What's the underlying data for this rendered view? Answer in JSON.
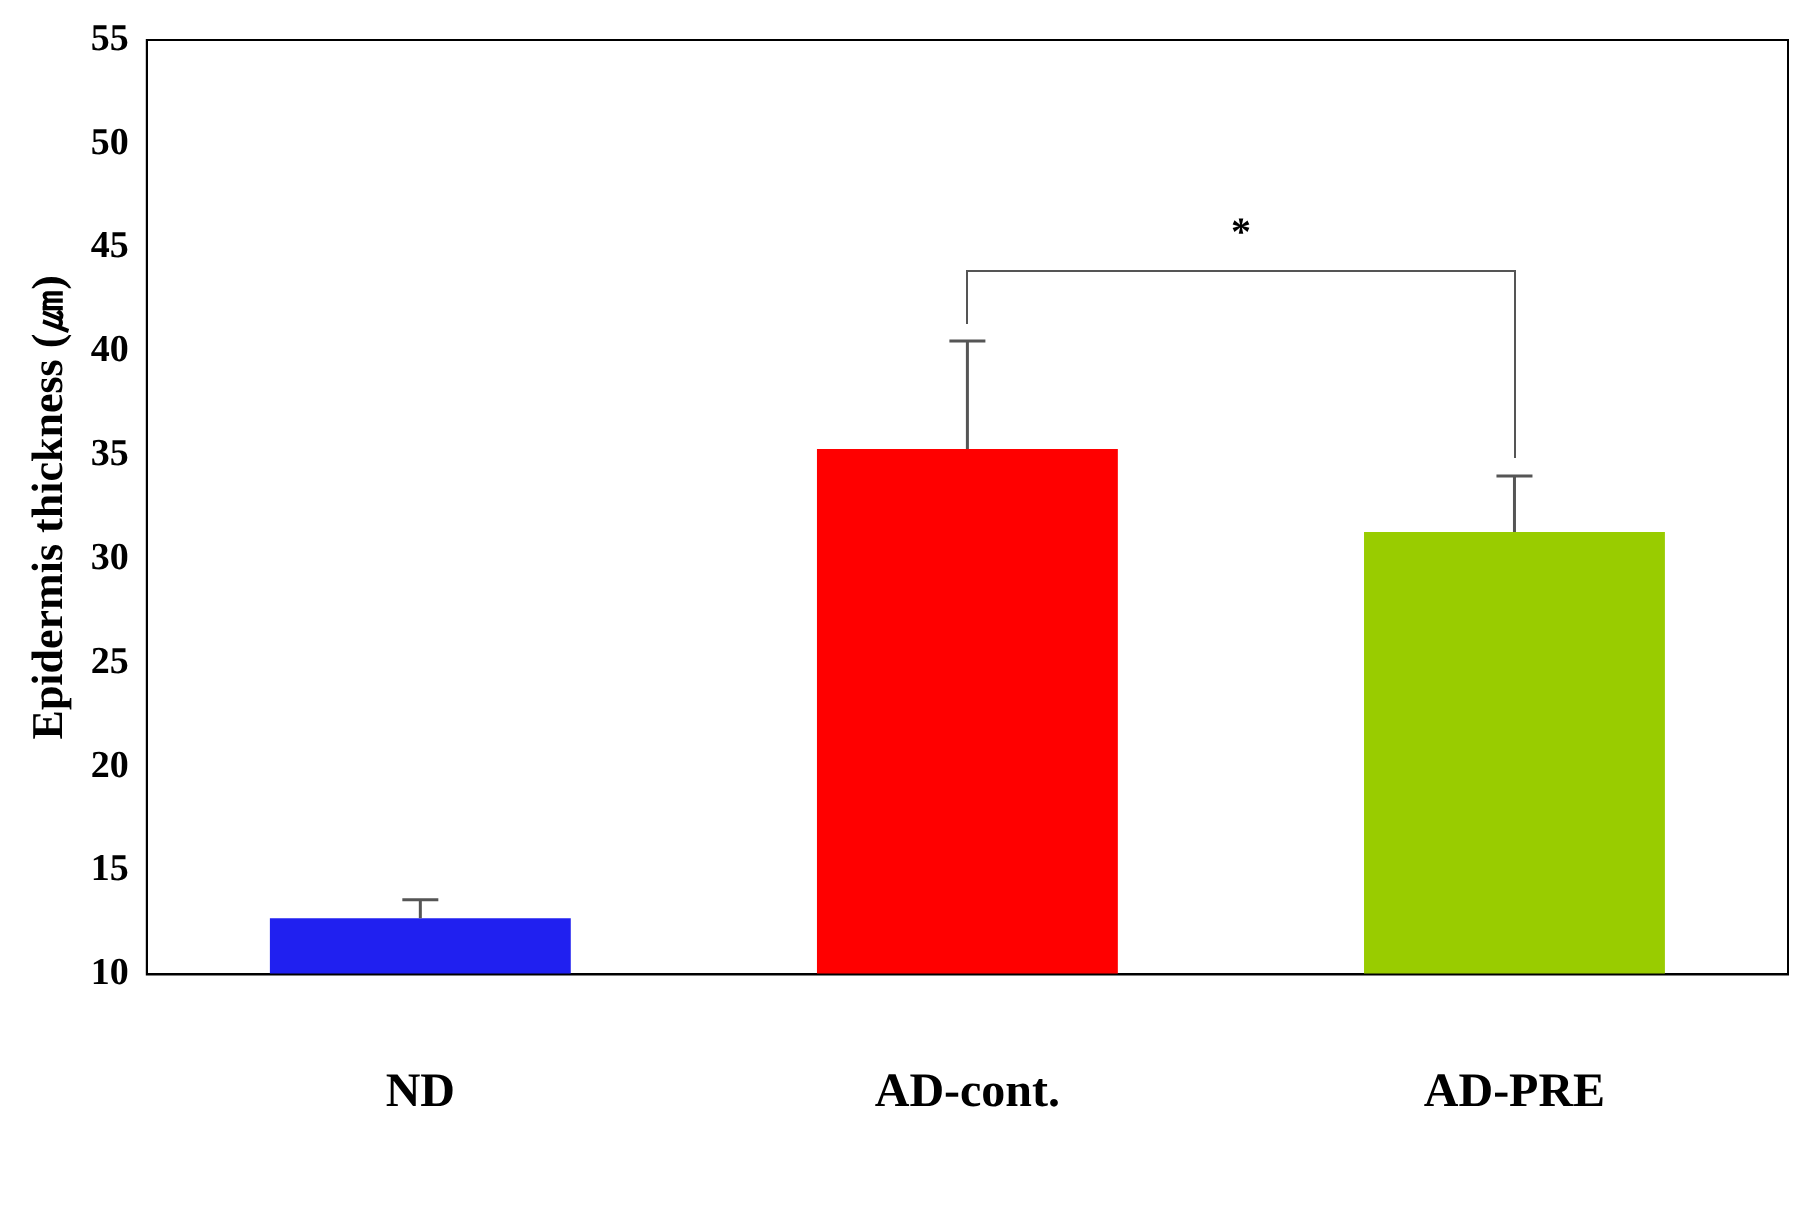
{
  "chart_data": {
    "type": "bar",
    "ylabel": "Epidermis thickness (㎛)",
    "categories": [
      "ND",
      "AD-cont.",
      "AD-PRE"
    ],
    "values": [
      12.7,
      35.3,
      31.3
    ],
    "colors": [
      "#2020f0",
      "#ff0000",
      "#99cc00"
    ],
    "errors": [
      [
        12.7,
        13.6
      ],
      [
        35.3,
        40.5
      ],
      [
        31.3,
        34
      ]
    ],
    "ylim": [
      10,
      55
    ],
    "yticks": [
      10,
      15,
      20,
      25,
      30,
      35,
      40,
      45,
      50,
      55
    ],
    "grid": false,
    "legend": false,
    "annotations": [
      "*"
    ]
  }
}
